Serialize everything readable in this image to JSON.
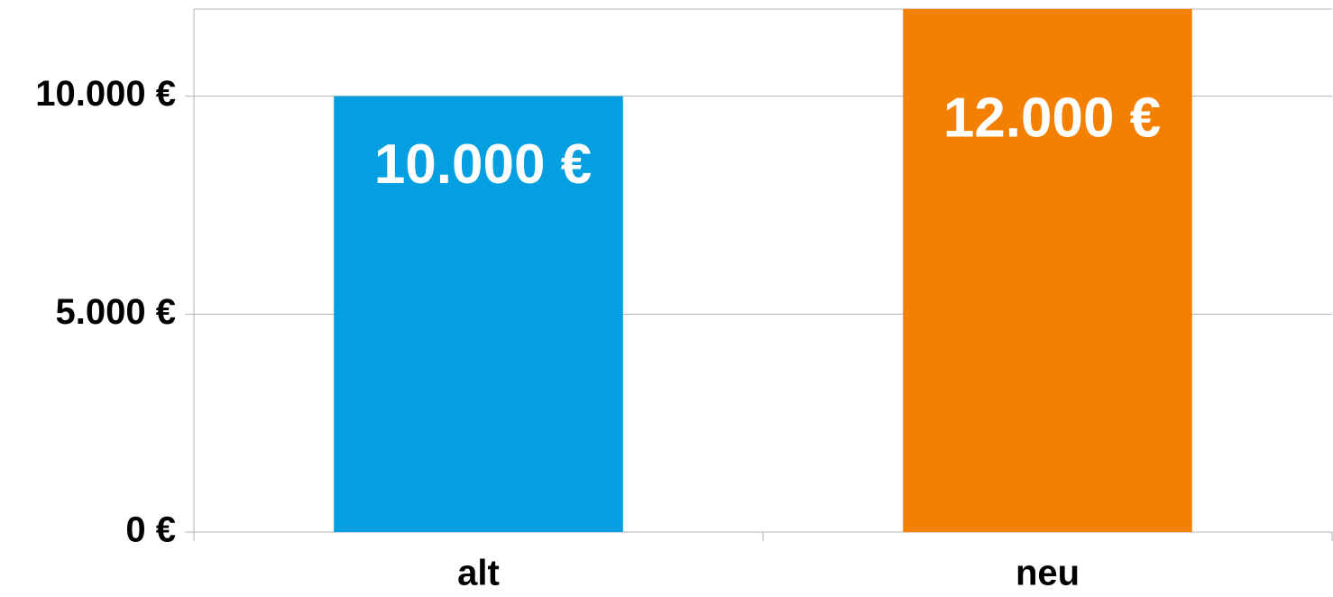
{
  "chart_data": {
    "type": "bar",
    "categories": [
      "alt",
      "neu"
    ],
    "values": [
      10000,
      12000
    ],
    "value_labels": [
      "10.000 €",
      "12.000 €"
    ],
    "colors": [
      "#039fe0",
      "#f48002"
    ],
    "ylim": [
      0,
      12000
    ],
    "yticks": [
      {
        "value": 0,
        "label": "0 €"
      },
      {
        "value": 5000,
        "label": "5.000 €"
      },
      {
        "value": 10000,
        "label": "10.000 €"
      }
    ],
    "grid": true
  }
}
